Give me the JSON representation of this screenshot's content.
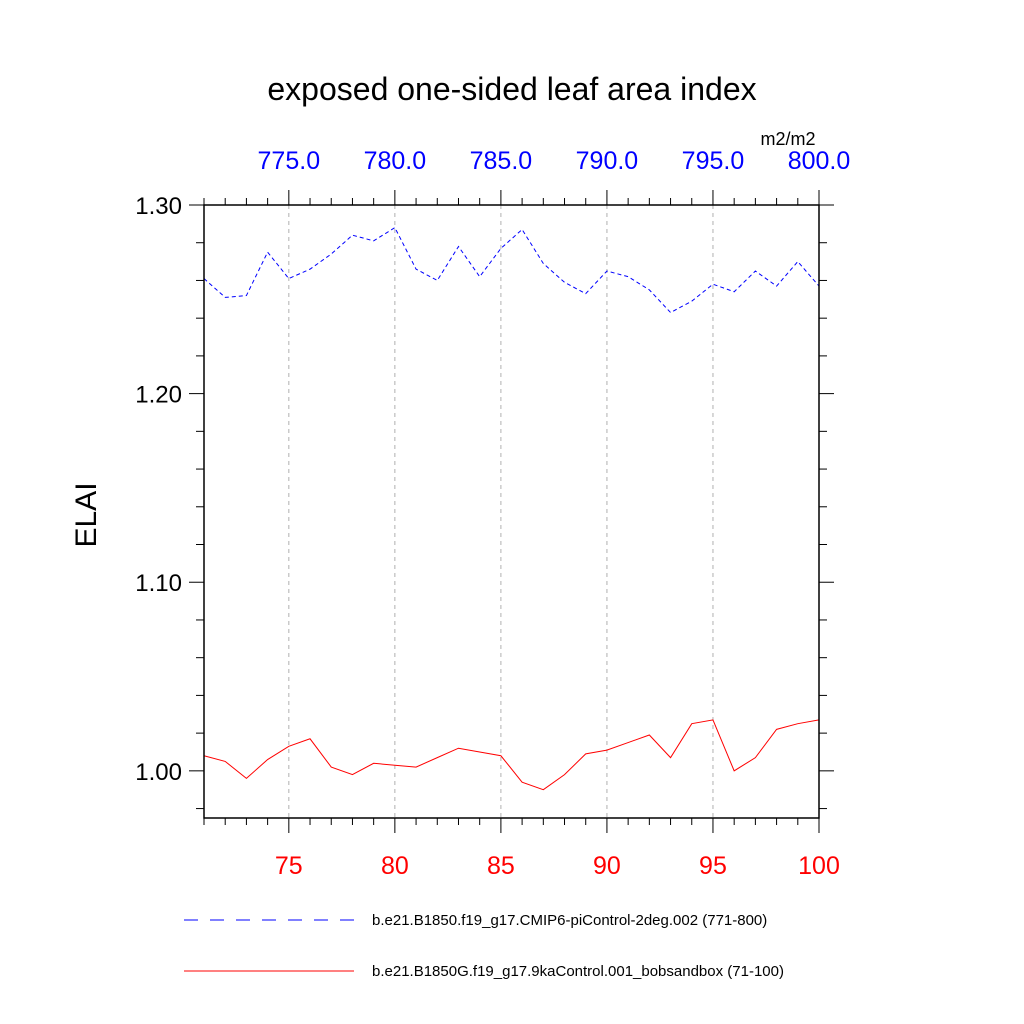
{
  "chart_data": {
    "type": "line",
    "title": "exposed one-sided leaf area index",
    "units": "m2/m2",
    "ylabel": "ELAI",
    "ylim": [
      0.975,
      1.3
    ],
    "yticks": [
      1.0,
      1.1,
      1.2,
      1.3
    ],
    "ytick_labels": [
      "1.00",
      "1.10",
      "1.20",
      "1.30"
    ],
    "x_bottom": {
      "range": [
        71,
        100
      ],
      "ticks": [
        75,
        80,
        85,
        90,
        95,
        100
      ],
      "tick_labels": [
        "75",
        "80",
        "85",
        "90",
        "95",
        "100"
      ],
      "color": "#ff0000"
    },
    "x_top": {
      "range": [
        771,
        800
      ],
      "ticks": [
        775,
        780,
        785,
        790,
        795,
        800
      ],
      "tick_labels": [
        "775.0",
        "780.0",
        "785.0",
        "790.0",
        "795.0",
        "800.0"
      ],
      "color": "#0000ff"
    },
    "grid": "vertical dashed at major x ticks",
    "legend_position": "bottom",
    "series": [
      {
        "name": "b.e21.B1850.f19_g17.CMIP6-piControl-2deg.002 (771-800)",
        "axis": "top",
        "color": "#0000ff",
        "style": "dashed",
        "x": [
          771,
          772,
          773,
          774,
          775,
          776,
          777,
          778,
          779,
          780,
          781,
          782,
          783,
          784,
          785,
          786,
          787,
          788,
          789,
          790,
          791,
          792,
          793,
          794,
          795,
          796,
          797,
          798,
          799,
          800
        ],
        "values": [
          1.261,
          1.251,
          1.252,
          1.275,
          1.261,
          1.266,
          1.274,
          1.284,
          1.281,
          1.288,
          1.266,
          1.26,
          1.278,
          1.262,
          1.277,
          1.287,
          1.269,
          1.259,
          1.253,
          1.265,
          1.262,
          1.255,
          1.243,
          1.249,
          1.258,
          1.254,
          1.265,
          1.257,
          1.27,
          1.257
        ]
      },
      {
        "name": "b.e21.B1850G.f19_g17.9kaControl.001_bobsandbox (71-100)",
        "axis": "bottom",
        "color": "#ff0000",
        "style": "solid",
        "x": [
          71,
          72,
          73,
          74,
          75,
          76,
          77,
          78,
          79,
          80,
          81,
          82,
          83,
          84,
          85,
          86,
          87,
          88,
          89,
          90,
          91,
          92,
          93,
          94,
          95,
          96,
          97,
          98,
          99,
          100
        ],
        "values": [
          1.008,
          1.005,
          0.996,
          1.006,
          1.013,
          1.017,
          1.002,
          0.998,
          1.004,
          1.003,
          1.002,
          1.007,
          1.012,
          1.01,
          1.008,
          0.994,
          0.99,
          0.998,
          1.009,
          1.011,
          1.015,
          1.019,
          1.007,
          1.025,
          1.027,
          1.0,
          1.007,
          1.022,
          1.025,
          1.027
        ]
      }
    ]
  }
}
